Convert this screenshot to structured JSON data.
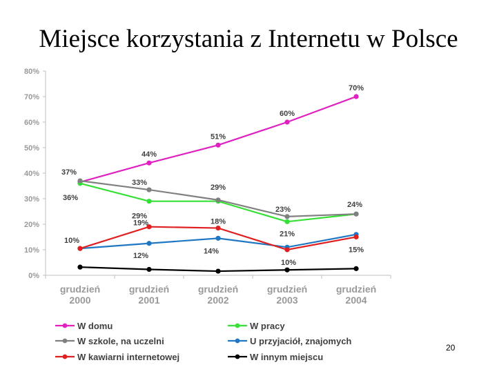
{
  "slide": {
    "title": "Miejsce korzystania z Internetu w Polsce",
    "page_number": "20"
  },
  "chart_data": {
    "type": "line",
    "title": "Miejsce korzystania z Internetu w Polsce",
    "xlabel": "",
    "ylabel": "",
    "ylim": [
      0,
      80
    ],
    "yticks": [
      "0%",
      "10%",
      "20%",
      "30%",
      "40%",
      "50%",
      "60%",
      "70%",
      "80%"
    ],
    "categories": [
      [
        "grudzień",
        "2000"
      ],
      [
        "grudzień",
        "2001"
      ],
      [
        "grudzień",
        "2002"
      ],
      [
        "grudzień",
        "2003"
      ],
      [
        "grudzień",
        "2004"
      ]
    ],
    "grid": false,
    "legend_position": "bottom",
    "series": [
      {
        "name": "W domu",
        "color": "#e020c0",
        "values": [
          36.5,
          44,
          51,
          60,
          70
        ]
      },
      {
        "name": "W pracy",
        "color": "#33e033",
        "values": [
          36,
          29,
          29,
          21,
          24
        ]
      },
      {
        "name": "W szkole, na uczelni",
        "color": "#808080",
        "values": [
          37,
          33.5,
          29.5,
          23,
          24
        ]
      },
      {
        "name": "U przyjaciół, znajomych",
        "color": "#1f77c4",
        "values": [
          10.5,
          12.5,
          14.5,
          11,
          16
        ]
      },
      {
        "name": "W kawiarni internetowej",
        "color": "#e02020",
        "values": [
          10.5,
          19,
          18.5,
          10,
          15
        ]
      },
      {
        "name": "W innym miejscu",
        "color": "#000000",
        "values": [
          3.2,
          2.3,
          1.6,
          2.1,
          2.6
        ]
      }
    ],
    "data_labels": [
      {
        "series": "W domu",
        "index": 1,
        "text": "44%"
      },
      {
        "series": "W domu",
        "index": 2,
        "text": "51%"
      },
      {
        "series": "W domu",
        "index": 3,
        "text": "60%"
      },
      {
        "series": "W domu",
        "index": 4,
        "text": "70%"
      },
      {
        "series": "W szkole, na uczelni",
        "index": 0,
        "text": "37%"
      },
      {
        "series": "W pracy",
        "index": 0,
        "text": "36%"
      },
      {
        "series": "W szkole, na uczelni",
        "index": 1,
        "text": "33%"
      },
      {
        "series": "W pracy",
        "index": 1,
        "text": "29%"
      },
      {
        "series": "W szkole, na uczelni",
        "index": 2,
        "text": "29%"
      },
      {
        "series": "W szkole, na uczelni",
        "index": 3,
        "text": "23%"
      },
      {
        "series": "W pracy",
        "index": 3,
        "text": "21%"
      },
      {
        "series": "W pracy",
        "index": 4,
        "text": "24%"
      },
      {
        "series": "W kawiarni internetowej",
        "index": 0,
        "text": "10%"
      },
      {
        "series": "W kawiarni internetowej",
        "index": 1,
        "text": "19%"
      },
      {
        "series": "U przyjaciół, znajomych",
        "index": 1,
        "text": "12%"
      },
      {
        "series": "W kawiarni internetowej",
        "index": 2,
        "text": "18%"
      },
      {
        "series": "U przyjaciół, znajomych",
        "index": 2,
        "text": "14%"
      },
      {
        "series": "W kawiarni internetowej",
        "index": 3,
        "text": "10%"
      },
      {
        "series": "W kawiarni internetowej",
        "index": 4,
        "text": "15%"
      }
    ]
  }
}
